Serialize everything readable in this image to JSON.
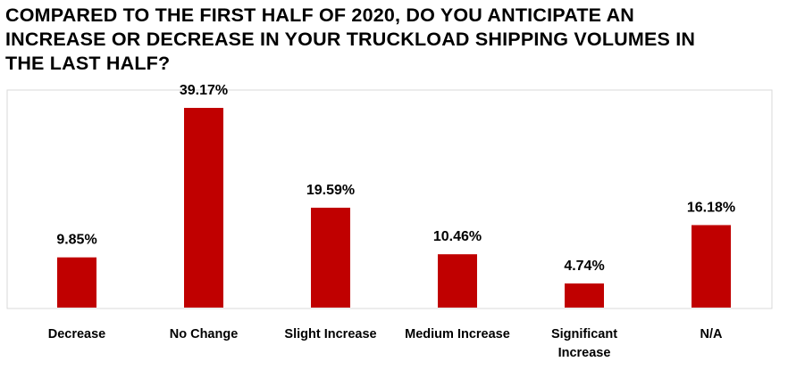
{
  "chart_data": {
    "type": "bar",
    "title": "COMPARED TO THE FIRST HALF OF 2020, DO YOU ANTICIPATE AN INCREASE OR DECREASE IN YOUR TRUCKLOAD SHIPPING VOLUMES IN THE LAST HALF?",
    "categories": [
      "Decrease",
      "No Change",
      "Slight Increase",
      "Medium Increase",
      "Significant Increase",
      "N/A"
    ],
    "category_lines": [
      [
        "Decrease"
      ],
      [
        "No Change"
      ],
      [
        "Slight Increase"
      ],
      [
        "Medium Increase"
      ],
      [
        "Significant",
        "Increase"
      ],
      [
        "N/A"
      ]
    ],
    "values": [
      9.85,
      39.17,
      19.59,
      10.46,
      4.74,
      16.18
    ],
    "data_labels": [
      "9.85%",
      "39.17%",
      "19.59%",
      "10.46%",
      "4.74%",
      "16.18%"
    ],
    "ylim": [
      0,
      45
    ],
    "grid": false,
    "bar_color": "#c00000",
    "frame_color": "#d9d9d9"
  }
}
